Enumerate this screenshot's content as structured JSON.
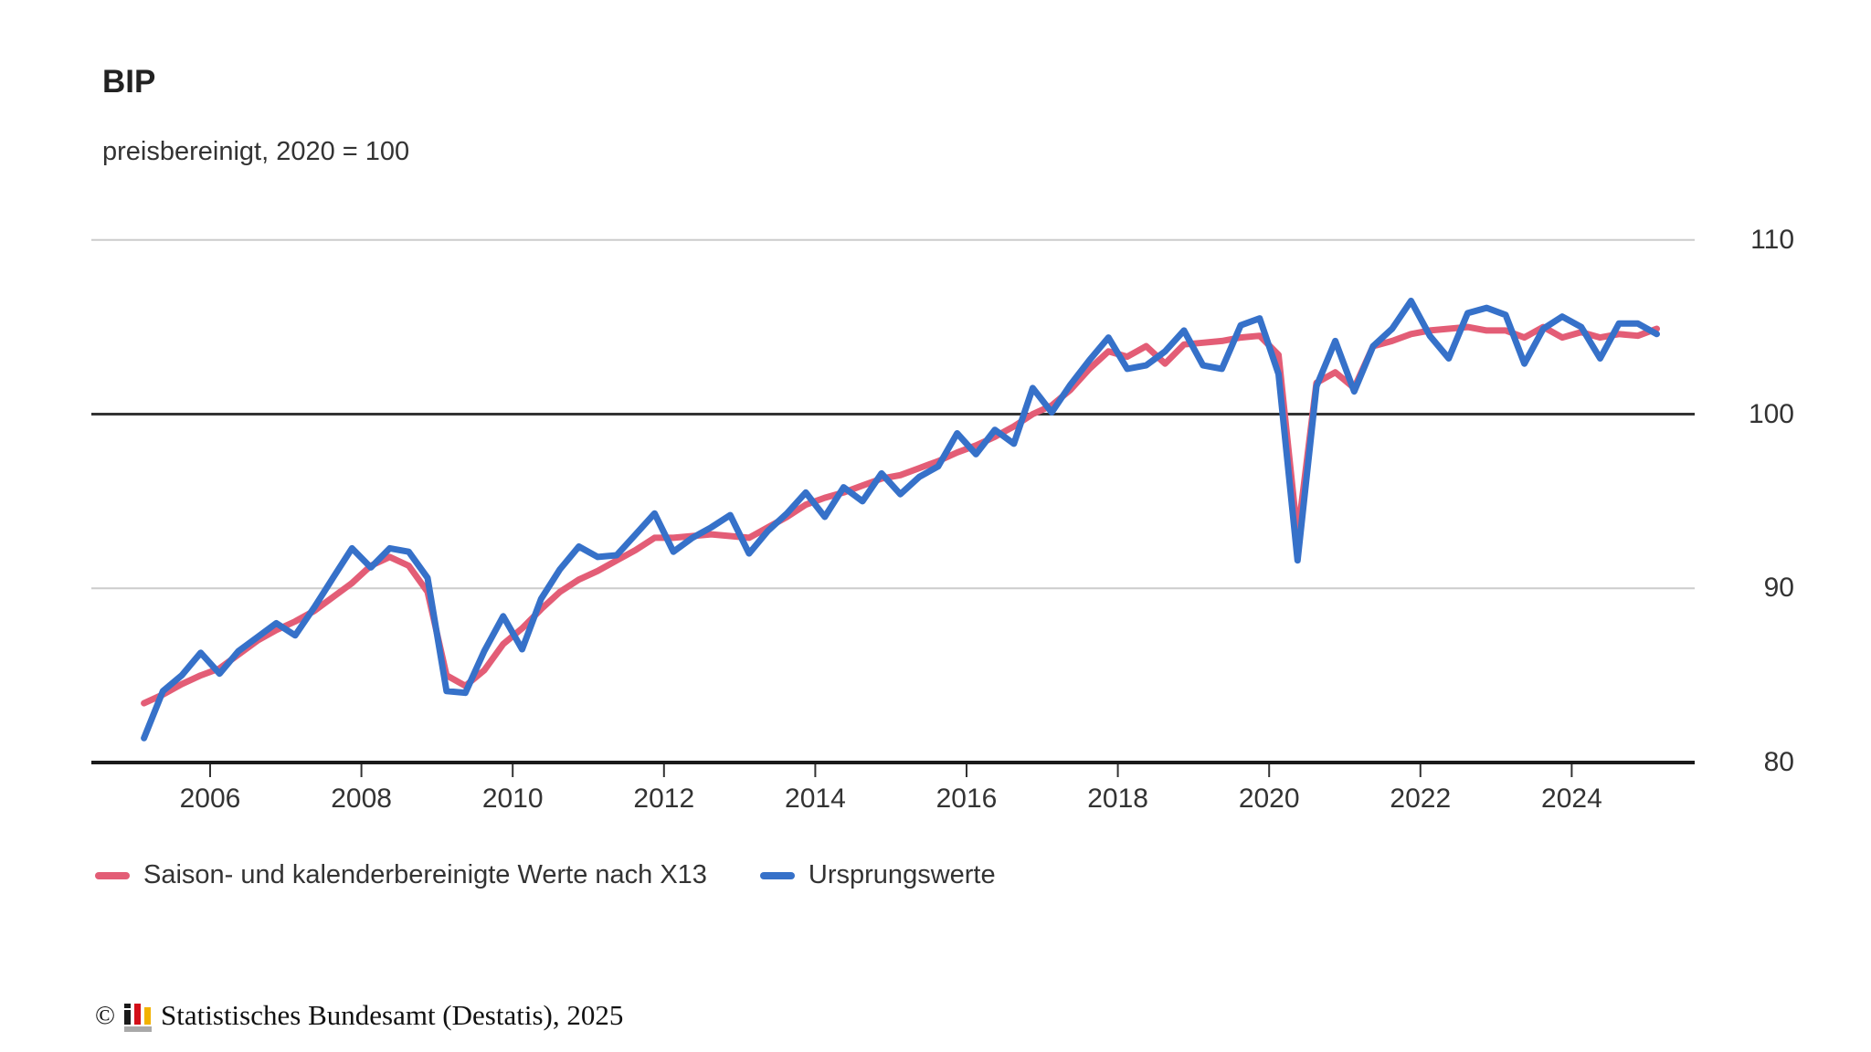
{
  "chart_data": {
    "type": "line",
    "title": "BIP",
    "subtitle": "preisbereinigt, 2020 = 100",
    "frequency": "quarterly",
    "x_start": "2005 Q1",
    "x_end": "2025 Q1",
    "x_ticks": [
      "2006",
      "2008",
      "2010",
      "2012",
      "2014",
      "2016",
      "2018",
      "2020",
      "2022",
      "2024"
    ],
    "y_ticks": [
      80,
      90,
      100,
      110
    ],
    "ylim": [
      80,
      110
    ],
    "reference_line": 100,
    "grid": "horizontal-light",
    "legend_position": "bottom-left",
    "series": [
      {
        "name": "Saison- und kalenderbereinigte Werte nach X13",
        "color": "#e35d76",
        "values": [
          83.4,
          83.9,
          84.5,
          85.0,
          85.4,
          86.2,
          87.0,
          87.6,
          88.1,
          88.7,
          89.5,
          90.3,
          91.3,
          91.8,
          91.3,
          89.8,
          85.0,
          84.4,
          85.3,
          86.8,
          87.7,
          88.8,
          89.8,
          90.5,
          91.0,
          91.6,
          92.2,
          92.9,
          92.9,
          93.0,
          93.1,
          93.0,
          92.9,
          93.5,
          94.1,
          94.8,
          95.2,
          95.5,
          95.9,
          96.3,
          96.5,
          96.9,
          97.3,
          97.8,
          98.2,
          98.7,
          99.3,
          100.0,
          100.5,
          101.4,
          102.6,
          103.6,
          103.3,
          103.9,
          102.9,
          104.0,
          104.1,
          104.2,
          104.4,
          104.5,
          103.4,
          93.0,
          101.8,
          102.4,
          101.5,
          103.9,
          104.2,
          104.6,
          104.8,
          104.9,
          105.0,
          104.8,
          104.8,
          104.4,
          105.0,
          104.4,
          104.7,
          104.4,
          104.6,
          104.5,
          104.9
        ]
      },
      {
        "name": "Ursprungswerte",
        "color": "#3671c9",
        "values": [
          81.4,
          84.1,
          85.0,
          86.3,
          85.1,
          86.4,
          87.2,
          88.0,
          87.3,
          88.9,
          90.6,
          92.3,
          91.2,
          92.3,
          92.1,
          90.6,
          84.1,
          84.0,
          86.4,
          88.4,
          86.5,
          89.4,
          91.1,
          92.4,
          91.8,
          91.9,
          93.1,
          94.3,
          92.1,
          92.9,
          93.5,
          94.2,
          92.0,
          93.3,
          94.3,
          95.5,
          94.1,
          95.8,
          95.0,
          96.6,
          95.4,
          96.4,
          97.0,
          98.9,
          97.7,
          99.1,
          98.3,
          101.5,
          100.1,
          101.7,
          103.1,
          104.4,
          102.6,
          102.8,
          103.6,
          104.8,
          102.8,
          102.6,
          105.1,
          105.5,
          102.3,
          91.6,
          101.6,
          104.2,
          101.3,
          103.9,
          104.9,
          106.5,
          104.5,
          103.2,
          105.8,
          106.1,
          105.7,
          102.9,
          104.9,
          105.6,
          105.0,
          103.2,
          105.2,
          105.2,
          104.6
        ]
      }
    ]
  },
  "footer": {
    "copyright": "©",
    "source": "Statistisches Bundesamt (Destatis), 2025"
  }
}
